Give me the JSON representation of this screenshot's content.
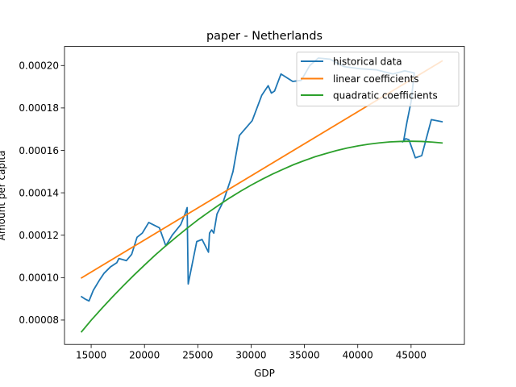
{
  "chart_data": {
    "type": "line",
    "title": "paper - Netherlands",
    "xlabel": "GDP",
    "ylabel": "Amount per capita",
    "xlim": [
      12500,
      50000
    ],
    "ylim": [
      6.85e-05,
      0.000209
    ],
    "x_ticks": [
      {
        "value": 15000,
        "label": "15000"
      },
      {
        "value": 20000,
        "label": "20000"
      },
      {
        "value": 25000,
        "label": "25000"
      },
      {
        "value": 30000,
        "label": "30000"
      },
      {
        "value": 35000,
        "label": "35000"
      },
      {
        "value": 40000,
        "label": "40000"
      },
      {
        "value": 45000,
        "label": "45000"
      }
    ],
    "y_ticks": [
      {
        "value": 8e-05,
        "label": "0.00008"
      },
      {
        "value": 0.0001,
        "label": "0.00010"
      },
      {
        "value": 0.00012,
        "label": "0.00012"
      },
      {
        "value": 0.00014,
        "label": "0.00014"
      },
      {
        "value": 0.00016,
        "label": "0.00016"
      },
      {
        "value": 0.00018,
        "label": "0.00018"
      },
      {
        "value": 0.0002,
        "label": "0.00020"
      }
    ],
    "grid": false,
    "legend_position": "upper right",
    "series": [
      {
        "name": "historical data",
        "color": "#1f77b4",
        "x": [
          14100,
          14400,
          14800,
          15200,
          15800,
          16200,
          16800,
          17400,
          17600,
          18300,
          18800,
          19300,
          19800,
          20400,
          21400,
          22000,
          22600,
          23400,
          23800,
          24000,
          24100,
          24300,
          24900,
          25400,
          25700,
          26000,
          26100,
          26300,
          26500,
          26800,
          27400,
          28000,
          28300,
          28900,
          30100,
          31000,
          31600,
          31900,
          32200,
          32800,
          33900,
          34700,
          35500,
          36300,
          37400,
          38700,
          40200,
          41700,
          42500,
          43300,
          44400,
          45300,
          45000,
          44600,
          44300,
          44200,
          44500,
          44800,
          45400,
          46000,
          46900,
          47900
        ],
        "y": [
          9.1e-05,
          9e-05,
          8.9e-05,
          9.4e-05,
          9.9e-05,
          0.000102,
          0.000105,
          0.000107,
          0.000109,
          0.000108,
          0.000111,
          0.000119,
          0.000121,
          0.000126,
          0.0001235,
          0.000115,
          0.00012,
          0.000125,
          0.00013,
          0.000133,
          9.7e-05,
          0.000102,
          0.000117,
          0.000118,
          0.000115,
          0.000112,
          0.000121,
          0.0001225,
          0.000121,
          0.00013,
          0.000136,
          0.000145,
          0.00015,
          0.000167,
          0.000174,
          0.000186,
          0.0001905,
          0.000187,
          0.000188,
          0.000196,
          0.0001925,
          0.000193,
          0.0002,
          0.0002035,
          0.000203,
          0.0001995,
          0.0001985,
          0.000198,
          0.000197,
          0.000196,
          0.0001975,
          0.0001965,
          0.000183,
          0.000173,
          0.0001645,
          0.000164,
          0.0001655,
          0.000165,
          0.0001565,
          0.0001575,
          0.0001745,
          0.0001735
        ]
      },
      {
        "name": "linear coefficients",
        "color": "#ff7f0e",
        "x": [
          14100,
          47900
        ],
        "y": [
          9.99e-05,
          0.0002021
        ]
      },
      {
        "name": "quadratic coefficients",
        "color": "#2ca02c",
        "x": [
          14100,
          15000,
          16000,
          17000,
          18000,
          19000,
          20000,
          21000,
          22000,
          23000,
          24000,
          25000,
          26000,
          27000,
          28000,
          29000,
          30000,
          31000,
          32000,
          33000,
          34000,
          35000,
          36000,
          37000,
          38000,
          39000,
          40000,
          41000,
          42000,
          43000,
          44000,
          45000,
          46000,
          47000,
          47900
        ],
        "y": [
          7.45e-05,
          7.99e-05,
          8.55e-05,
          9.09e-05,
          9.61e-05,
          0.0001011,
          0.0001059,
          0.0001106,
          0.000115,
          0.0001192,
          0.0001233,
          0.0001272,
          0.0001308,
          0.0001343,
          0.0001376,
          0.0001407,
          0.0001436,
          0.0001463,
          0.0001488,
          0.0001511,
          0.0001533,
          0.0001552,
          0.000157,
          0.0001585,
          0.0001599,
          0.0001611,
          0.0001621,
          0.0001629,
          0.0001635,
          0.000164,
          0.0001642,
          0.0001643,
          0.0001642,
          0.0001639,
          0.0001635
        ]
      }
    ]
  }
}
